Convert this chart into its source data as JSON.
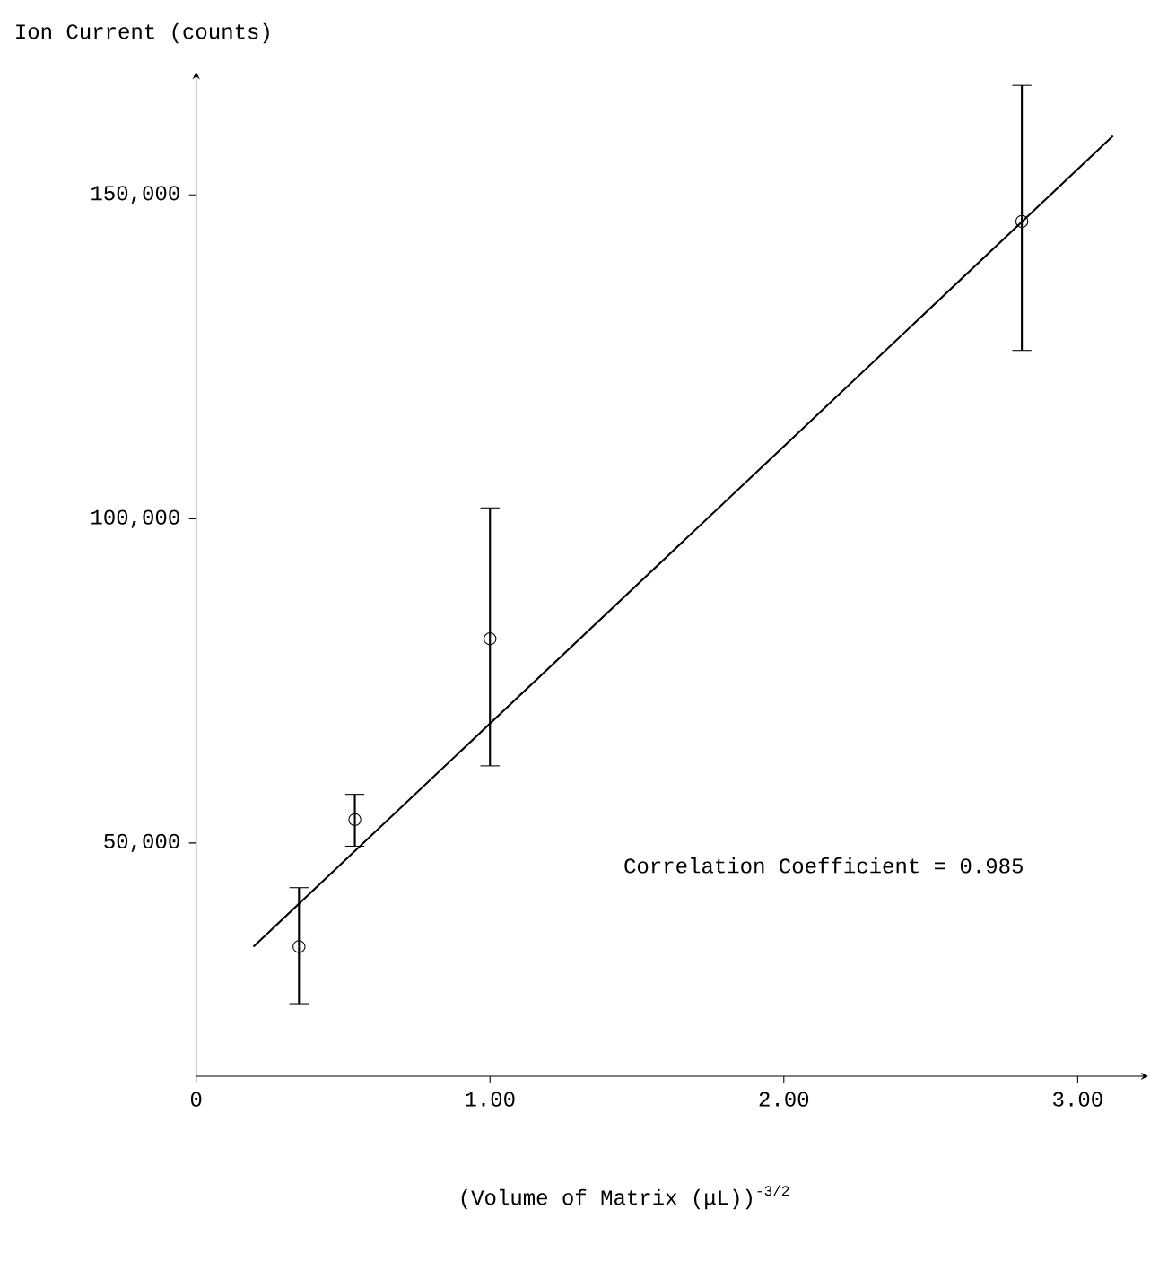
{
  "chart_data": {
    "type": "scatter",
    "xlabel": "(Volume of Matrix (μL))$^{-3/2}$",
    "ylabel": "Ion Current (counts)",
    "annotations": [
      "Correlation Coefficient = 0.985"
    ],
    "xlim": [
      0,
      3.24
    ],
    "ylim": [
      14000,
      169000
    ],
    "xticks": [
      {
        "value": 0,
        "label": "0"
      },
      {
        "value": 1,
        "label": "1.00"
      },
      {
        "value": 2,
        "label": "2.00"
      },
      {
        "value": 3,
        "label": "3.00"
      }
    ],
    "yticks": [
      {
        "value": 50000,
        "label": "50,000"
      },
      {
        "value": 100000,
        "label": "100,000"
      },
      {
        "value": 150000,
        "label": "150,000"
      }
    ],
    "grid": false,
    "series": [
      {
        "marker": "circle",
        "color": "#000000",
        "x": [
          0.35,
          0.54,
          1.0,
          2.81
        ],
        "values": [
          34000,
          53600,
          81500,
          145900
        ],
        "errors": [
          [
            25200,
            43100
          ],
          [
            49500,
            57500
          ],
          [
            61900,
            101700
          ],
          [
            126000,
            166900
          ]
        ]
      },
      {
        "type": "line",
        "marker": "none",
        "color": "#000000",
        "x": [
          0.195,
          3.12
        ],
        "values": [
          34000,
          159100
        ]
      }
    ]
  }
}
